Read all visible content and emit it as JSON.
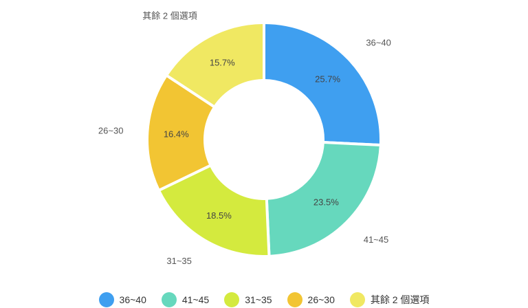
{
  "chart_data": {
    "type": "pie",
    "donut": true,
    "categories": [
      "36~40",
      "41~45",
      "31~35",
      "26~30",
      "其餘 2 個選項"
    ],
    "values": [
      25.7,
      23.5,
      18.5,
      16.4,
      15.7
    ],
    "value_labels": [
      "25.7%",
      "23.5%",
      "18.5%",
      "16.4%",
      "15.7%"
    ],
    "colors": [
      "#3f9ff0",
      "#66d8bd",
      "#d4ea3e",
      "#f2c533",
      "#f0e862"
    ],
    "legend_position": "bottom",
    "title": ""
  }
}
